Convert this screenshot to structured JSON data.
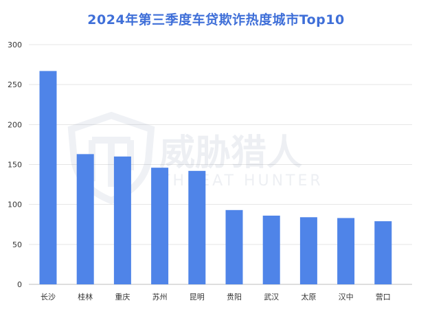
{
  "chart_data": {
    "type": "bar",
    "title": "2024年第三季度车贷欺诈热度城市Top10",
    "categories": [
      "长沙",
      "桂林",
      "重庆",
      "苏州",
      "昆明",
      "贵阳",
      "武汉",
      "太原",
      "汉中",
      "营口"
    ],
    "values": [
      267,
      163,
      160,
      146,
      142,
      93,
      86,
      84,
      83,
      79
    ],
    "ylim": [
      0,
      300
    ],
    "yticks": [
      0,
      50,
      100,
      150,
      200,
      250,
      300
    ],
    "grid": true,
    "legend": "none",
    "colors": {
      "bar": "#4f84e8",
      "grid": "#e4e4e4",
      "title": "#3f6fd8"
    }
  },
  "watermark": {
    "name": "威胁猎人",
    "subtitle": "THREAT HUNTER"
  }
}
